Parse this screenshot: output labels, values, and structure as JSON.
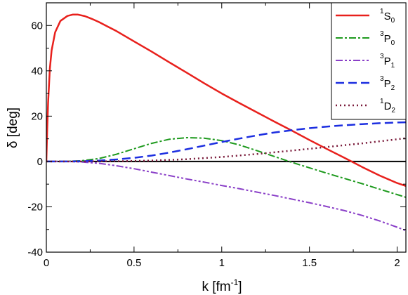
{
  "chart_data": {
    "type": "line",
    "xlabel": {
      "main": "k [fm",
      "sup": "-1",
      "end": "]"
    },
    "ylabel": "δ [deg]",
    "xlim": [
      0,
      2.05
    ],
    "ylim": [
      -40,
      70
    ],
    "xticks": [
      {
        "value": 0,
        "label": "0"
      },
      {
        "value": 0.5,
        "label": "0.5"
      },
      {
        "value": 1,
        "label": "1"
      },
      {
        "value": 1.5,
        "label": "1.5"
      },
      {
        "value": 2,
        "label": "2"
      }
    ],
    "yticks": [
      {
        "value": -40,
        "label": "-40"
      },
      {
        "value": -20,
        "label": "-20"
      },
      {
        "value": 0,
        "label": "0"
      },
      {
        "value": 20,
        "label": "20"
      },
      {
        "value": 40,
        "label": "40"
      },
      {
        "value": 60,
        "label": "60"
      }
    ],
    "legend_position": "top-right",
    "zero_line": true,
    "series": [
      {
        "id": "1S0",
        "sup": "1",
        "letter": "S",
        "sub": "0",
        "color": "#e8201c",
        "dash": "",
        "width": 2.5,
        "x": [
          0,
          0.005,
          0.01,
          0.02,
          0.03,
          0.05,
          0.08,
          0.12,
          0.15,
          0.18,
          0.22,
          0.26,
          0.3,
          0.35,
          0.4,
          0.5,
          0.6,
          0.7,
          0.8,
          0.9,
          1.0,
          1.1,
          1.2,
          1.3,
          1.4,
          1.5,
          1.6,
          1.7,
          1.8,
          1.9,
          2.0,
          2.05
        ],
        "y": [
          0,
          14,
          26,
          41,
          49,
          57,
          62,
          64.2,
          64.8,
          64.8,
          64.1,
          62.9,
          61.5,
          59.5,
          57.5,
          53,
          48.5,
          43.8,
          39.2,
          34.5,
          30,
          25.8,
          21.7,
          17.6,
          13.6,
          9.5,
          5.5,
          1.6,
          -2.4,
          -6.2,
          -9.5,
          -10.8
        ]
      },
      {
        "id": "3P0",
        "sup": "3",
        "letter": "P",
        "sub": "0",
        "color": "#1e9a1e",
        "dash": "10,3,3,3",
        "width": 2,
        "x": [
          0,
          0.1,
          0.2,
          0.3,
          0.4,
          0.5,
          0.6,
          0.7,
          0.8,
          0.9,
          1.0,
          1.1,
          1.2,
          1.3,
          1.4,
          1.5,
          1.6,
          1.7,
          1.8,
          1.9,
          2.0,
          2.05
        ],
        "y": [
          0,
          0,
          0.3,
          1.3,
          3.2,
          5.6,
          8.0,
          9.8,
          10.5,
          10.3,
          9.2,
          7.3,
          4.8,
          2.2,
          -0.4,
          -2.8,
          -5.2,
          -7.5,
          -9.8,
          -12.2,
          -14.6,
          -15.8
        ]
      },
      {
        "id": "3P1",
        "sup": "3",
        "letter": "P",
        "sub": "1",
        "color": "#8a3fc8",
        "dash": "10,3,3,3,3,3",
        "width": 2,
        "x": [
          0,
          0.1,
          0.2,
          0.3,
          0.4,
          0.5,
          0.6,
          0.7,
          0.8,
          0.9,
          1.0,
          1.1,
          1.2,
          1.3,
          1.4,
          1.5,
          1.6,
          1.7,
          1.8,
          1.9,
          2.0,
          2.05
        ],
        "y": [
          0,
          0,
          -0.2,
          -0.8,
          -1.9,
          -3.2,
          -4.7,
          -6.2,
          -7.7,
          -9.1,
          -10.6,
          -12.0,
          -13.5,
          -15.0,
          -16.6,
          -18.2,
          -19.9,
          -21.7,
          -23.8,
          -26.2,
          -29.0,
          -30.5
        ]
      },
      {
        "id": "3P2",
        "sup": "3",
        "letter": "P",
        "sub": "2",
        "color": "#1c2ee0",
        "dash": "12,6",
        "width": 2.5,
        "x": [
          0,
          0.1,
          0.2,
          0.3,
          0.4,
          0.5,
          0.6,
          0.7,
          0.8,
          0.9,
          1.0,
          1.1,
          1.2,
          1.3,
          1.4,
          1.5,
          1.6,
          1.7,
          1.8,
          1.9,
          2.0,
          2.05
        ],
        "y": [
          0,
          0,
          0.1,
          0.4,
          0.9,
          1.6,
          2.6,
          3.9,
          5.4,
          7.0,
          8.6,
          10.1,
          11.5,
          12.8,
          13.8,
          14.7,
          15.4,
          16.0,
          16.5,
          16.9,
          17.2,
          17.3
        ]
      },
      {
        "id": "1D2",
        "sup": "1",
        "letter": "D",
        "sub": "2",
        "color": "#7a1a3a",
        "dash": "2,4",
        "width": 2.5,
        "x": [
          0,
          0.2,
          0.4,
          0.6,
          0.8,
          1.0,
          1.2,
          1.4,
          1.6,
          1.8,
          2.0,
          2.05
        ],
        "y": [
          0,
          0,
          0.1,
          0.4,
          1.0,
          2.0,
          3.3,
          4.8,
          6.4,
          8.0,
          9.8,
          10.3
        ]
      }
    ]
  }
}
